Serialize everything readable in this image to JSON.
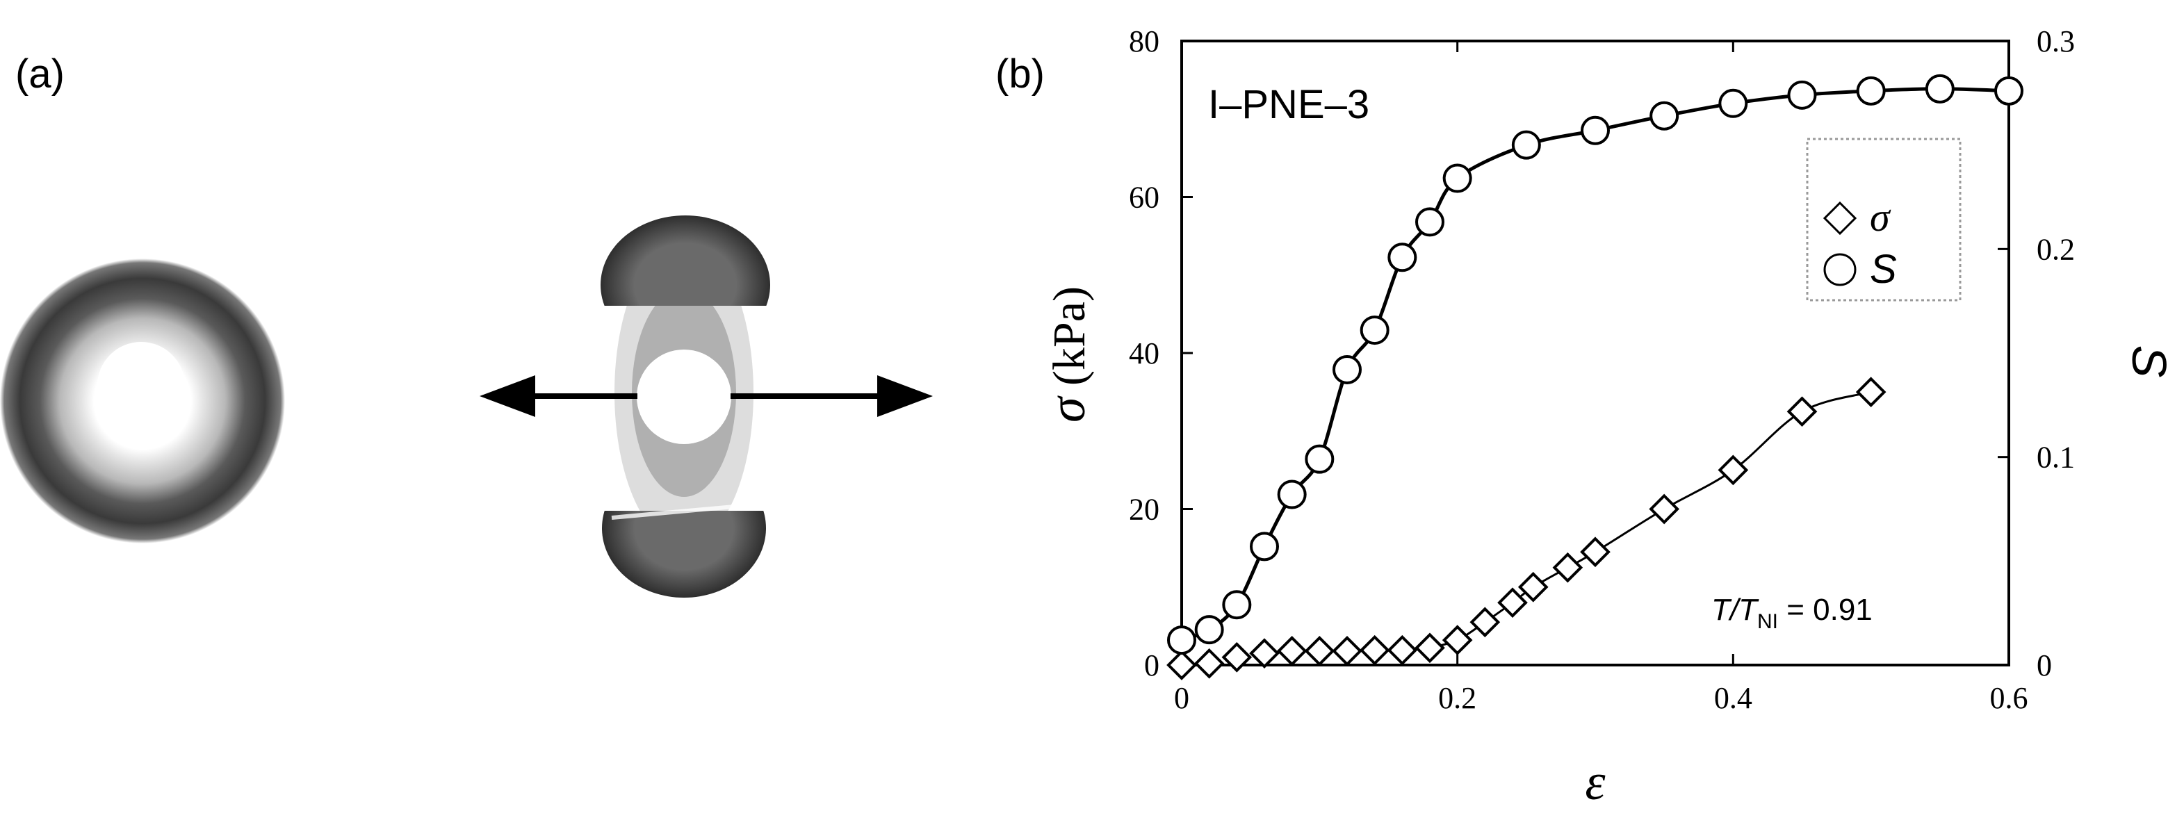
{
  "panel_a": {
    "label": "(a)"
  },
  "panel_b": {
    "label": "(b)"
  },
  "chart_data": {
    "type": "scatter",
    "annotation_sample": "I–PNE–3",
    "annotation_temp_prefix": "T/T",
    "annotation_temp_sub": "NI",
    "annotation_temp_value": " = 0.91",
    "xlabel": "ε",
    "ylabel_left_symbol": "σ",
    "ylabel_left_unit": "(kPa)",
    "ylabel_right": "S",
    "xlim": [
      0,
      0.6
    ],
    "ylim_left": [
      0,
      80
    ],
    "ylim_right": [
      0,
      0.3
    ],
    "x_ticks": [
      "0",
      "0.2",
      "0.4",
      "0.6"
    ],
    "y_left_ticks": [
      "0",
      "20",
      "40",
      "60",
      "80"
    ],
    "y_right_ticks": [
      "0",
      "0.1",
      "0.2",
      "0.3"
    ],
    "legend_position": "top-right",
    "series": [
      {
        "name": "σ",
        "axis": "left",
        "marker": "diamond",
        "x": [
          0,
          0.02,
          0.04,
          0.06,
          0.08,
          0.1,
          0.12,
          0.14,
          0.16,
          0.18,
          0.2,
          0.22,
          0.24,
          0.255,
          0.28,
          0.3,
          0.35,
          0.4,
          0.45,
          0.5
        ],
        "y": [
          0,
          0.2,
          1,
          1.5,
          1.8,
          1.8,
          1.8,
          1.9,
          1.9,
          2.2,
          3.2,
          5.5,
          8,
          10,
          12.5,
          14.5,
          20,
          25,
          32.5,
          35
        ]
      },
      {
        "name": "S",
        "axis": "right",
        "marker": "circle",
        "x": [
          0,
          0.02,
          0.04,
          0.06,
          0.08,
          0.1,
          0.12,
          0.14,
          0.16,
          0.18,
          0.2,
          0.25,
          0.3,
          0.35,
          0.4,
          0.45,
          0.5,
          0.55,
          0.6
        ],
        "y": [
          0.012,
          0.017,
          0.029,
          0.057,
          0.082,
          0.099,
          0.142,
          0.161,
          0.196,
          0.213,
          0.234,
          0.25,
          0.257,
          0.264,
          0.27,
          0.274,
          0.276,
          0.277,
          0.276
        ]
      }
    ]
  }
}
